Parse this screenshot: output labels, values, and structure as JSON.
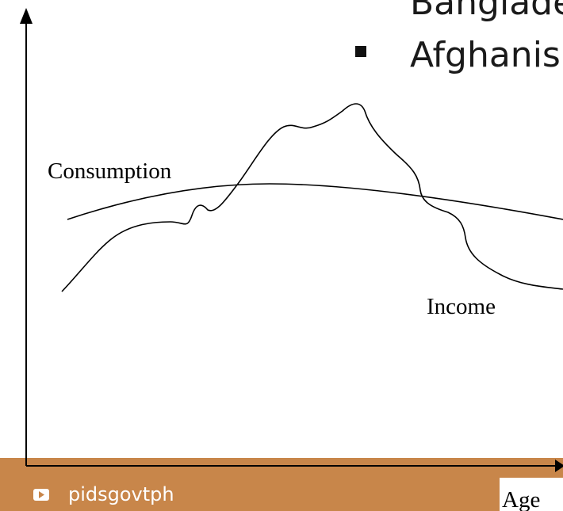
{
  "bullets": [
    "Banglade",
    "Afghanis"
  ],
  "labels": {
    "consumption": "Consumption",
    "income": "Income",
    "x_axis": "Age"
  },
  "footer": {
    "channel": "pidsgovtph"
  }
}
